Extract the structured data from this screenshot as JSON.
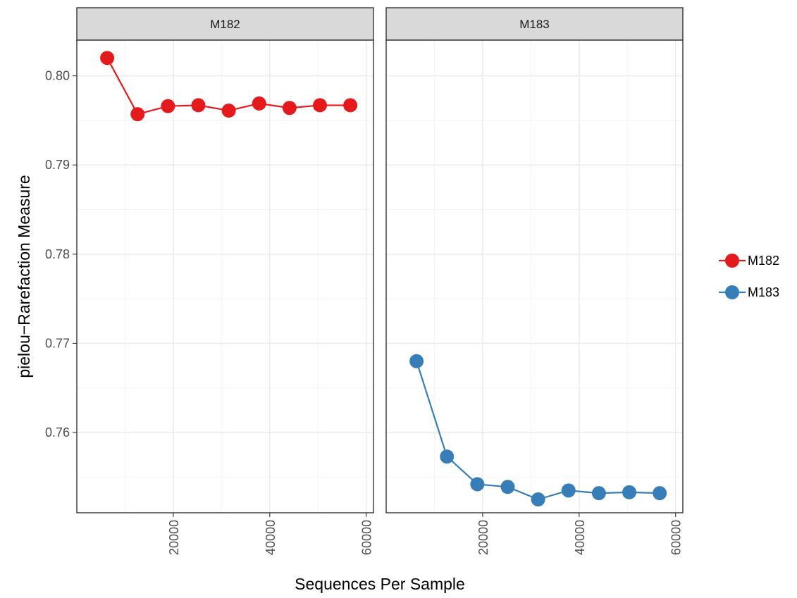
{
  "chart_data": {
    "type": "line",
    "xlabel": "Sequences Per Sample",
    "ylabel": "pielou−Rarefaction Measure",
    "x_ticks": [
      20000,
      40000,
      60000
    ],
    "x_tick_labels": [
      "20000",
      "40000",
      "60000"
    ],
    "y_ticks": [
      0.76,
      0.77,
      0.78,
      0.79,
      0.8
    ],
    "y_tick_labels": [
      "0.76",
      "0.77",
      "0.78",
      "0.79",
      "0.80"
    ],
    "xlim": [
      0,
      61500
    ],
    "ylim": [
      0.751,
      0.804
    ],
    "grid": true,
    "legend_position": "right",
    "colors": {
      "M182": "#e41a1c",
      "M183": "#377eb8"
    },
    "series": [
      {
        "name": "M182",
        "x": [
          6300,
          12600,
          18900,
          25200,
          31500,
          37800,
          44100,
          50400,
          56700
        ],
        "values": [
          0.802,
          0.7957,
          0.7966,
          0.7967,
          0.7961,
          0.7969,
          0.7964,
          0.7967,
          0.7967
        ]
      },
      {
        "name": "M183",
        "x": [
          6300,
          12600,
          18900,
          25200,
          31500,
          37800,
          44100,
          50400,
          56700
        ],
        "values": [
          0.768,
          0.7573,
          0.7542,
          0.7539,
          0.7525,
          0.7535,
          0.7532,
          0.7533,
          0.7532
        ]
      }
    ],
    "facets": [
      "M182",
      "M183"
    ]
  }
}
